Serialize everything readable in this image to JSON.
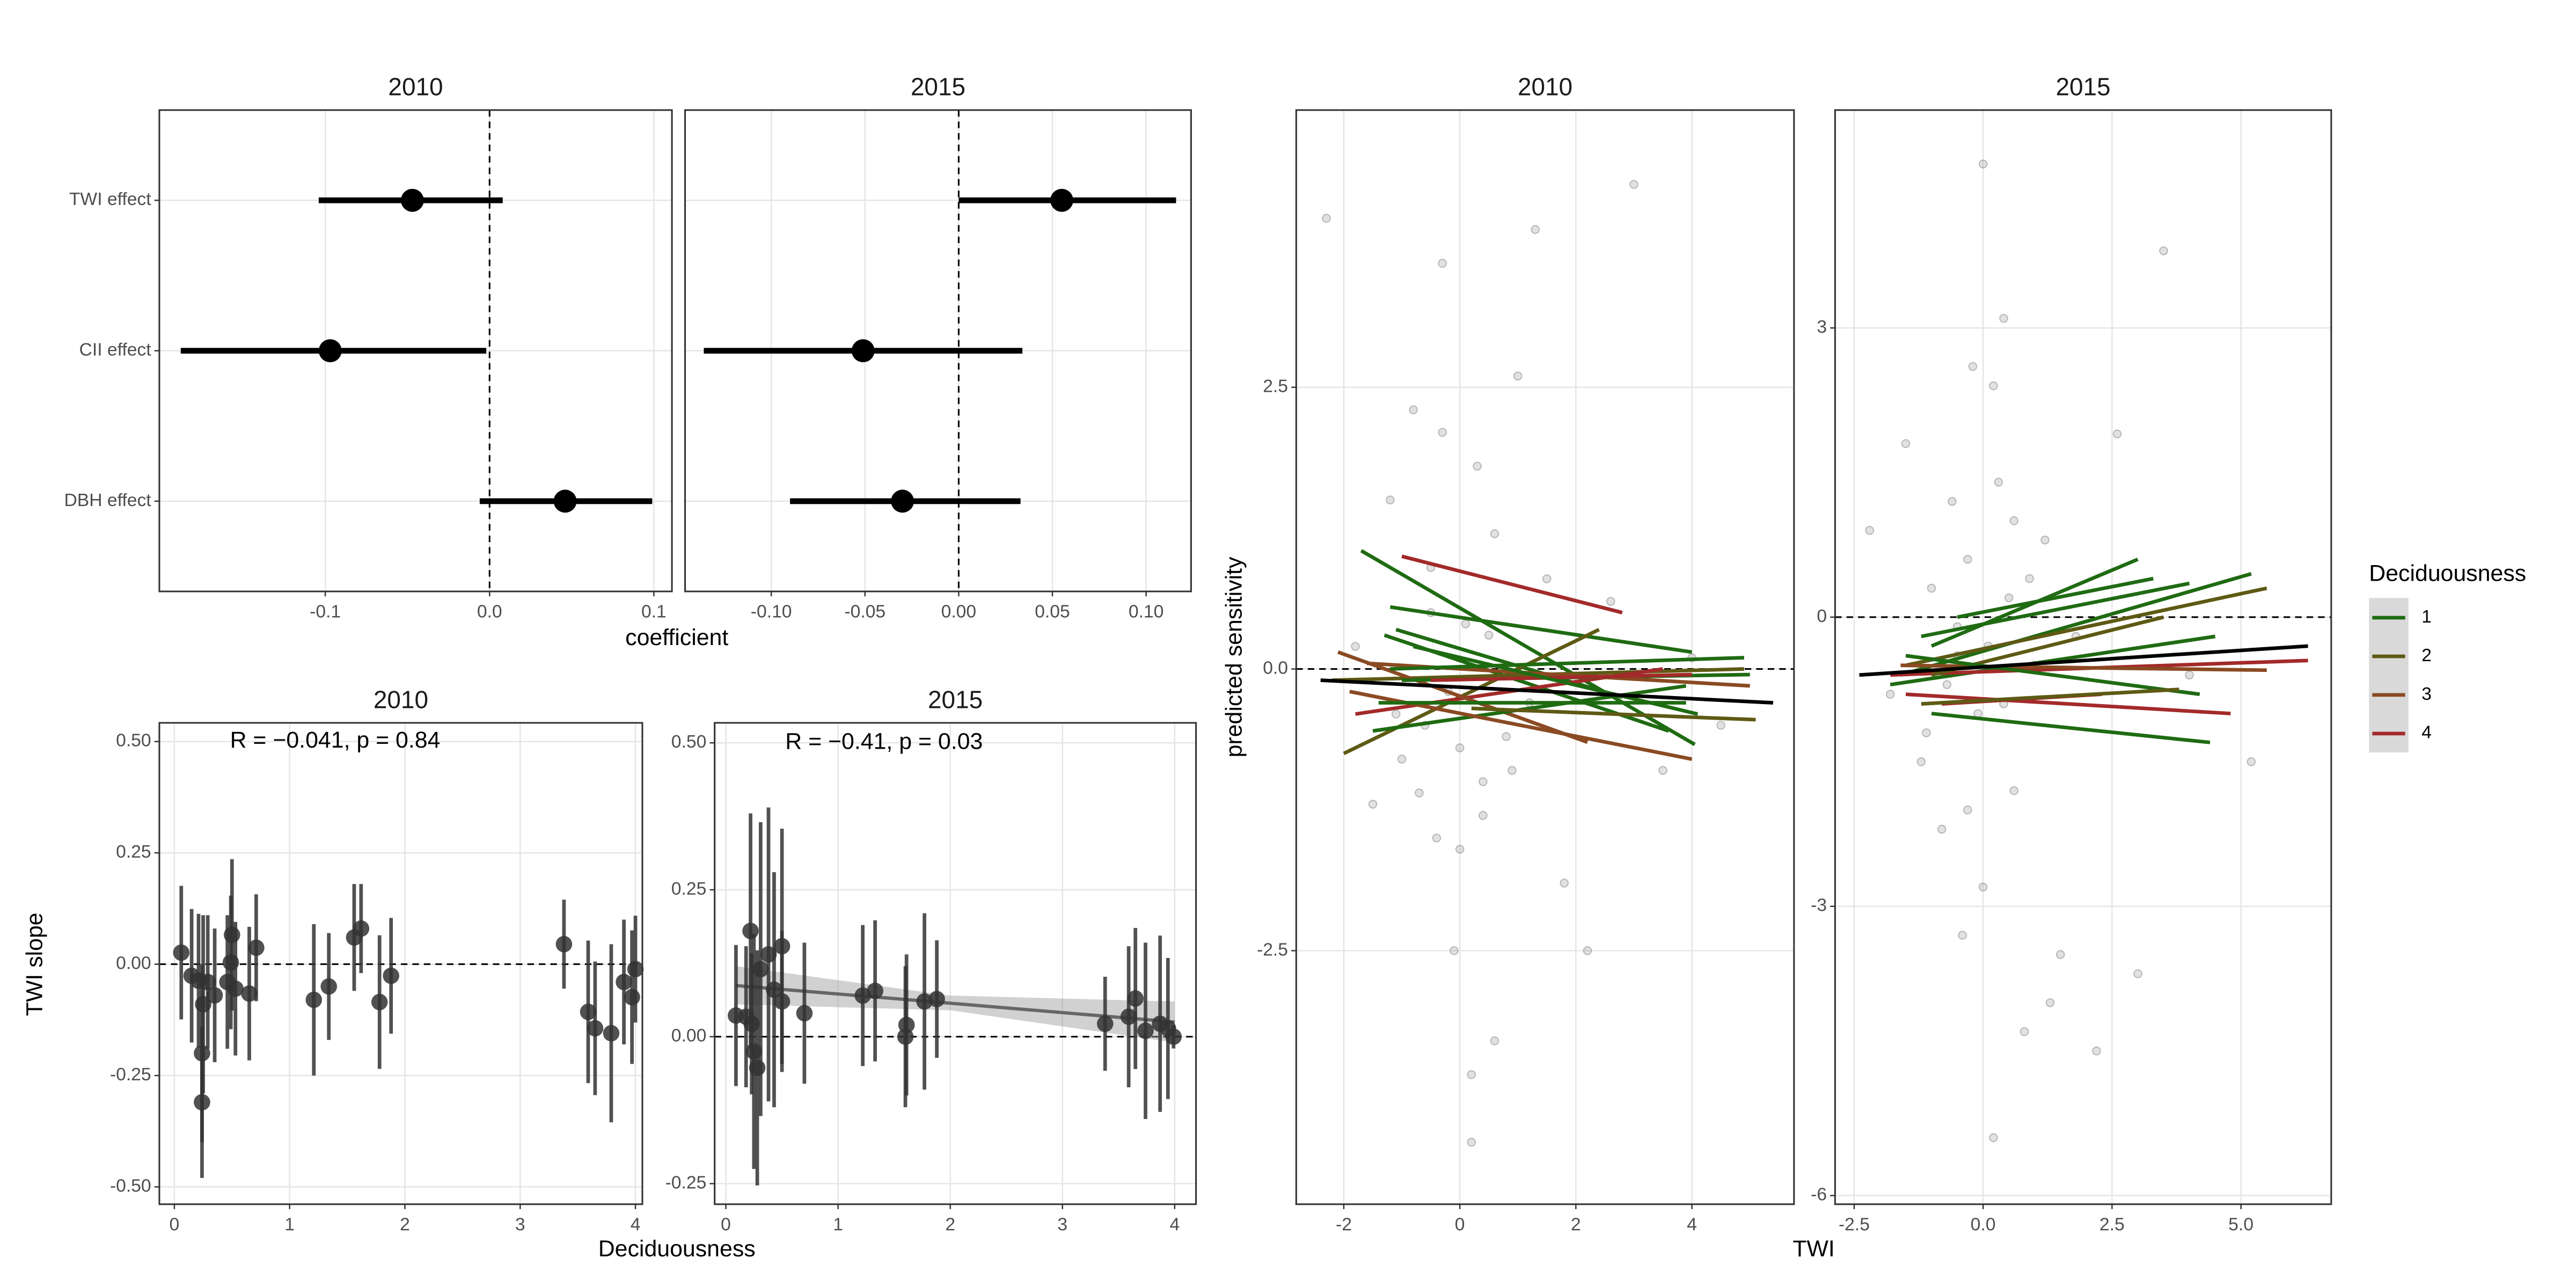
{
  "chart_data": [
    {
      "type": "interval",
      "title": "2010",
      "xlabel": "coefficient",
      "categories": [
        "TWI effect",
        "CII effect",
        "DBH effect"
      ],
      "values": [
        -0.047,
        -0.097,
        0.046
      ],
      "lower": [
        -0.104,
        -0.188,
        -0.006
      ],
      "upper": [
        0.008,
        -0.002,
        0.099
      ],
      "xlim": [
        -0.201,
        0.111
      ],
      "xticks": [
        -0.1,
        {
          "value": 0,
          "label": "0.0"
        },
        0.1
      ],
      "ref_line": 0,
      "grid": true
    },
    {
      "type": "interval",
      "title": "2015",
      "categories": [
        null,
        null,
        null
      ],
      "values": [
        0.055,
        -0.051,
        -0.03
      ],
      "lower": [
        0.0,
        -0.136,
        -0.09
      ],
      "upper": [
        0.116,
        0.034,
        0.033
      ],
      "xlim": [
        -0.146,
        0.124
      ],
      "xticks": [
        {
          "value": -0.1,
          "label": "-0.10"
        },
        {
          "value": -0.05,
          "label": "-0.05"
        },
        {
          "value": 0,
          "label": "0.00"
        },
        {
          "value": 0.05,
          "label": "0.05"
        },
        {
          "value": 0.1,
          "label": "0.10"
        }
      ],
      "ref_line": 0,
      "grid": true
    },
    {
      "type": "errorbar-scatter",
      "title": "2010",
      "ylabel": "TWI slope",
      "xlabel": "Deciduousness",
      "annotation": "R = −0.041, p = 0.84",
      "x": [
        0.06,
        0.15,
        0.21,
        0.25,
        0.24,
        0.24,
        0.29,
        0.35,
        0.46,
        0.49,
        0.5,
        0.53,
        0.65,
        0.71,
        1.21,
        1.34,
        1.56,
        1.62,
        1.78,
        1.88,
        3.38,
        3.59,
        3.65,
        3.79,
        3.9,
        3.97,
        4.0
      ],
      "values": [
        0.026,
        -0.026,
        -0.037,
        -0.09,
        -0.2,
        -0.31,
        -0.04,
        -0.07,
        -0.04,
        0.004,
        0.066,
        -0.055,
        -0.066,
        0.037,
        -0.08,
        -0.05,
        0.06,
        0.08,
        -0.085,
        -0.026,
        0.045,
        -0.107,
        -0.144,
        -0.155,
        -0.04,
        -0.074,
        -0.011
      ],
      "errors": [
        0.15,
        0.15,
        0.15,
        0.2,
        0.2,
        0.17,
        0.15,
        0.15,
        0.15,
        0.15,
        0.17,
        0.15,
        0.15,
        0.12,
        0.17,
        0.12,
        0.12,
        0.1,
        0.15,
        0.13,
        0.1,
        0.16,
        0.15,
        0.2,
        0.14,
        0.15,
        0.12
      ],
      "xlim": [
        -0.13,
        4.06
      ],
      "ylim": [
        -0.539,
        0.542
      ],
      "xticks": [
        0,
        1,
        2,
        3,
        4
      ],
      "yticks": [
        {
          "value": 0.5,
          "label": "0.50"
        },
        {
          "value": 0.25,
          "label": "0.25"
        },
        {
          "value": 0,
          "label": "0.00"
        },
        {
          "value": -0.25,
          "label": "-0.25"
        },
        {
          "value": -0.5,
          "label": "-0.50"
        }
      ],
      "ref_line": 0,
      "grid": true
    },
    {
      "type": "errorbar-scatter",
      "title": "2015",
      "annotation": "R = −0.41, p = 0.03",
      "x": [
        0.09,
        0.18,
        0.22,
        0.23,
        0.25,
        0.28,
        0.31,
        0.38,
        0.43,
        0.5,
        0.5,
        0.7,
        1.22,
        1.33,
        1.6,
        1.61,
        1.77,
        1.88,
        3.38,
        3.59,
        3.65,
        3.74,
        3.87,
        3.94,
        3.99
      ],
      "values": [
        0.036,
        0.034,
        0.18,
        0.022,
        -0.025,
        -0.053,
        0.115,
        0.14,
        0.08,
        0.154,
        0.06,
        0.04,
        0.07,
        0.078,
        0.0,
        0.02,
        0.06,
        0.064,
        0.022,
        0.034,
        0.065,
        0.01,
        0.022,
        0.014,
        0.0
      ],
      "errors": [
        0.12,
        0.12,
        0.2,
        0.12,
        0.2,
        0.2,
        0.25,
        0.25,
        0.2,
        0.2,
        0.12,
        0.12,
        0.12,
        0.12,
        0.12,
        0.12,
        0.15,
        0.1,
        0.08,
        0.12,
        0.12,
        0.15,
        0.15,
        0.12,
        0.02
      ],
      "trend": {
        "x": [
          0.09,
          2.0,
          4.0
        ],
        "y": [
          0.087,
          0.057,
          0.025
        ],
        "lower": [
          0.055,
          0.045,
          -0.01
        ],
        "upper": [
          0.12,
          0.07,
          0.06
        ]
      },
      "xlim": [
        -0.1,
        4.19
      ],
      "ylim": [
        -0.285,
        0.534
      ],
      "xticks": [
        0,
        1,
        2,
        3,
        4
      ],
      "yticks": [
        {
          "value": 0.5,
          "label": "0.50"
        },
        {
          "value": 0.25,
          "label": "0.25"
        },
        {
          "value": 0,
          "label": "0.00"
        },
        {
          "value": -0.25,
          "label": "-0.25"
        }
      ],
      "ref_line": 0,
      "grid": true
    },
    {
      "type": "scatter-fits",
      "title": "2010",
      "ylabel": "predicted sensitivity",
      "xlabel": "TWI",
      "x": [
        -2.3,
        -1.8,
        -1.5,
        -1.2,
        -1.0,
        -0.8,
        -0.6,
        -0.5,
        -0.4,
        -0.3,
        -0.2,
        -0.1,
        0,
        0.1,
        0.2,
        0.3,
        0.4,
        0.5,
        0.6,
        0.8,
        1.0,
        1.2,
        1.5,
        1.8,
        2.2,
        2.6,
        3.0,
        3.5,
        4.0,
        4.5,
        -0.7,
        0.2,
        -0.3,
        0.6,
        -1.1,
        0.9,
        0.0,
        -0.5,
        1.3,
        0.4
      ],
      "y": [
        4.0,
        0.2,
        -1.2,
        1.5,
        -0.8,
        2.3,
        -0.5,
        0.9,
        -1.5,
        3.6,
        -0.2,
        -2.5,
        -0.7,
        0.4,
        -4.2,
        1.8,
        -1.0,
        0.3,
        -3.3,
        -0.6,
        2.6,
        -0.3,
        0.8,
        -1.9,
        -2.5,
        0.6,
        4.3,
        -0.9,
        0.1,
        -0.5,
        -1.1,
        -3.6,
        2.1,
        1.2,
        -0.4,
        -0.9,
        -1.6,
        0.5,
        3.9,
        -1.3
      ],
      "fits": [
        {
          "color": "#1f6b12",
          "x": [
            -1.7,
            4.05
          ],
          "y": [
            1.05,
            -0.67
          ]
        },
        {
          "color": "#a32a2a",
          "x": [
            -1.0,
            2.8
          ],
          "y": [
            1.0,
            0.5
          ]
        },
        {
          "color": "#1f6b12",
          "x": [
            -1.2,
            4.0
          ],
          "y": [
            0.55,
            0.15
          ]
        },
        {
          "color": "#1f6b12",
          "x": [
            -1.1,
            2.8
          ],
          "y": [
            0.35,
            -0.25
          ]
        },
        {
          "color": "#1f6b12",
          "x": [
            -1.3,
            3.6
          ],
          "y": [
            0.3,
            -0.55
          ]
        },
        {
          "color": "#5e5a14",
          "x": [
            -2.2,
            4.9
          ],
          "y": [
            -0.1,
            0.0
          ]
        },
        {
          "color": "#5e5a14",
          "x": [
            -2.0,
            2.4
          ],
          "y": [
            -0.75,
            0.35
          ]
        },
        {
          "color": "#a32a2a",
          "x": [
            -1.8,
            3.5
          ],
          "y": [
            -0.4,
            0.0
          ]
        },
        {
          "color": "#8a4a22",
          "x": [
            -2.1,
            2.2
          ],
          "y": [
            0.15,
            -0.65
          ]
        },
        {
          "color": "#1f6b12",
          "x": [
            -1.5,
            3.9
          ],
          "y": [
            -0.55,
            -0.15
          ]
        },
        {
          "color": "#1f6b12",
          "x": [
            -1.0,
            5.0
          ],
          "y": [
            -0.1,
            -0.05
          ]
        },
        {
          "color": "#8a4a22",
          "x": [
            -1.6,
            5.0
          ],
          "y": [
            0.05,
            -0.15
          ]
        },
        {
          "color": "#a32a2a",
          "x": [
            -0.5,
            4.0
          ],
          "y": [
            -0.1,
            -0.05
          ]
        },
        {
          "color": "#1f6b12",
          "x": [
            -0.8,
            4.1
          ],
          "y": [
            0.2,
            -0.4
          ]
        },
        {
          "color": "#5e5a14",
          "x": [
            0.2,
            5.1
          ],
          "y": [
            -0.35,
            -0.45
          ]
        },
        {
          "color": "#1f6b12",
          "x": [
            -1.2,
            4.9
          ],
          "y": [
            0.0,
            0.1
          ]
        },
        {
          "color": "#8a4a22",
          "x": [
            -1.9,
            4.0
          ],
          "y": [
            -0.2,
            -0.8
          ]
        },
        {
          "color": "#1f6b12",
          "x": [
            -1.4,
            3.9
          ],
          "y": [
            -0.3,
            -0.3
          ]
        },
        {
          "color": "#000000",
          "x": [
            -2.4,
            5.4
          ],
          "y": [
            -0.1,
            -0.3
          ]
        }
      ],
      "xlim": [
        -2.82,
        5.76
      ],
      "ylim": [
        -4.75,
        4.96
      ],
      "xticks": [
        -2,
        0,
        2,
        4
      ],
      "yticks": [
        2.5,
        {
          "value": 0,
          "label": "0.0"
        },
        -2.5
      ],
      "ref_line": 0,
      "grid": true
    },
    {
      "type": "scatter-fits",
      "title": "2015",
      "x": [
        -2.2,
        -1.8,
        -1.5,
        -1.2,
        -1.0,
        -0.8,
        -0.6,
        -0.5,
        -0.4,
        -0.3,
        -0.2,
        -0.1,
        0,
        0.1,
        0.2,
        0.3,
        0.4,
        0.5,
        0.6,
        0.8,
        1.0,
        1.2,
        1.5,
        1.8,
        2.2,
        2.6,
        3.0,
        3.5,
        4.0,
        5.2,
        -0.7,
        0.2,
        -0.3,
        0.6,
        -1.1,
        0.9,
        0.0,
        -0.5,
        1.3,
        0.4
      ],
      "y": [
        0.9,
        -0.8,
        1.8,
        -1.5,
        0.3,
        -2.2,
        1.2,
        -0.4,
        -3.3,
        0.6,
        2.6,
        -1.0,
        4.7,
        -0.3,
        -5.4,
        1.4,
        -0.9,
        0.2,
        -1.8,
        -4.3,
        -0.5,
        0.8,
        -3.5,
        -0.2,
        -4.5,
        1.9,
        -3.7,
        3.8,
        -0.6,
        -1.5,
        -0.7,
        2.4,
        -2.0,
        1.0,
        -1.2,
        0.4,
        -2.8,
        -0.1,
        -4.0,
        3.1
      ],
      "fits": [
        {
          "color": "#1f6b12",
          "x": [
            -1.0,
            3.0
          ],
          "y": [
            -0.3,
            0.6
          ]
        },
        {
          "color": "#1f6b12",
          "x": [
            -1.6,
            5.2
          ],
          "y": [
            -0.6,
            0.45
          ]
        },
        {
          "color": "#5e5a14",
          "x": [
            -1.5,
            5.5
          ],
          "y": [
            -0.5,
            0.3
          ]
        },
        {
          "color": "#1f6b12",
          "x": [
            -1.2,
            4.0
          ],
          "y": [
            -0.2,
            0.35
          ]
        },
        {
          "color": "#1f6b12",
          "x": [
            -1.8,
            4.5
          ],
          "y": [
            -0.7,
            -0.2
          ]
        },
        {
          "color": "#a32a2a",
          "x": [
            -1.8,
            6.3
          ],
          "y": [
            -0.6,
            -0.45
          ]
        },
        {
          "color": "#a32a2a",
          "x": [
            -1.5,
            4.8
          ],
          "y": [
            -0.8,
            -1.0
          ]
        },
        {
          "color": "#1f6b12",
          "x": [
            -1.0,
            4.4
          ],
          "y": [
            -1.0,
            -1.3
          ]
        },
        {
          "color": "#8a4a22",
          "x": [
            -1.6,
            5.5
          ],
          "y": [
            -0.5,
            -0.55
          ]
        },
        {
          "color": "#5e5a14",
          "x": [
            -1.0,
            3.5
          ],
          "y": [
            -0.6,
            0.0
          ]
        },
        {
          "color": "#1f6b12",
          "x": [
            -1.5,
            4.2
          ],
          "y": [
            -0.4,
            -0.8
          ]
        },
        {
          "color": "#a32a2a",
          "x": [
            -0.8,
            2.3
          ],
          "y": [
            -0.9,
            -0.8
          ]
        },
        {
          "color": "#1f6b12",
          "x": [
            -0.5,
            3.3
          ],
          "y": [
            0.0,
            0.4
          ]
        },
        {
          "color": "#5e5a14",
          "x": [
            -1.2,
            3.8
          ],
          "y": [
            -0.9,
            -0.75
          ]
        },
        {
          "color": "#000000",
          "x": [
            -2.4,
            6.3
          ],
          "y": [
            -0.6,
            -0.3
          ]
        }
      ],
      "xlim": [
        -2.87,
        6.75
      ],
      "ylim": [
        -6.09,
        5.26
      ],
      "xticks": [
        -2.5,
        {
          "value": 0,
          "label": "0.0"
        },
        2.5,
        {
          "value": 5,
          "label": "5.0"
        }
      ],
      "yticks": [
        3,
        0,
        -3,
        -6
      ],
      "ref_line": 0,
      "grid": true,
      "legend_title": "Deciduousness",
      "legend": [
        {
          "name": "1",
          "color": "#1f6b12"
        },
        {
          "name": "2",
          "color": "#5e5a14"
        },
        {
          "name": "3",
          "color": "#8a4a22"
        },
        {
          "name": "4",
          "color": "#a32a2a"
        }
      ]
    }
  ]
}
